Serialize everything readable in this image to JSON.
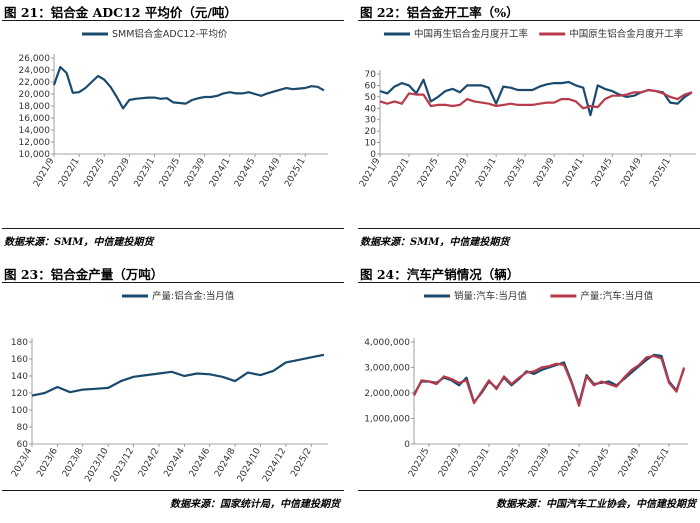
{
  "chart_data": [
    {
      "type": "line",
      "title": "图 21：铝合金 ADC12 平均价（元/吨）",
      "source": "数据来源：SMM，中信建投期货",
      "ylim": [
        10000,
        26000
      ],
      "yticks": [
        "10,000",
        "12,000",
        "14,000",
        "16,000",
        "18,000",
        "20,000",
        "22,000",
        "24,000",
        "26,000"
      ],
      "xticks": [
        "2021/9",
        "2022/1",
        "2022/5",
        "2022/9",
        "2023/1",
        "2023/5",
        "2023/9",
        "2024/1",
        "2024/5",
        "2024/9",
        "2025/1"
      ],
      "grid": false,
      "legend": "top",
      "x": [
        "2021/9",
        "2021/10",
        "2021/11",
        "2021/12",
        "2022/1",
        "2022/2",
        "2022/3",
        "2022/4",
        "2022/5",
        "2022/6",
        "2022/7",
        "2022/8",
        "2022/9",
        "2022/10",
        "2022/11",
        "2022/12",
        "2023/1",
        "2023/2",
        "2023/3",
        "2023/4",
        "2023/5",
        "2023/6",
        "2023/7",
        "2023/8",
        "2023/9",
        "2023/10",
        "2023/11",
        "2023/12",
        "2024/1",
        "2024/2",
        "2024/3",
        "2024/4",
        "2024/5",
        "2024/6",
        "2024/7",
        "2024/8",
        "2024/9",
        "2024/10",
        "2024/11",
        "2024/12",
        "2025/1",
        "2025/2",
        "2025/3",
        "2025/4"
      ],
      "series": [
        {
          "name": "SMM铝合金ADC12-平均价",
          "color": "#1a4a6e",
          "values": [
            21500,
            24500,
            23500,
            20200,
            20300,
            21000,
            22000,
            23000,
            22400,
            21200,
            19500,
            17600,
            19000,
            19200,
            19300,
            19400,
            19400,
            19200,
            19300,
            18600,
            18500,
            18400,
            19000,
            19300,
            19500,
            19500,
            19700,
            20100,
            20300,
            20100,
            20100,
            20300,
            20000,
            19700,
            20100,
            20400,
            20700,
            21000,
            20800,
            20900,
            21000,
            21300,
            21200,
            20600
          ]
        }
      ]
    },
    {
      "type": "line",
      "title": "图 22：铝合金开工率（%）",
      "source": "数据来源：SMM，中信建投期货",
      "ylim": [
        0,
        70
      ],
      "yticks": [
        "0",
        "10",
        "20",
        "30",
        "40",
        "50",
        "60",
        "70"
      ],
      "xticks": [
        "2021/9",
        "2022/1",
        "2022/5",
        "2022/9",
        "2023/1",
        "2023/5",
        "2023/9",
        "2024/1",
        "2024/5",
        "2024/9",
        "2025/1"
      ],
      "grid": false,
      "legend": "top",
      "x": [
        "2021/9",
        "2021/10",
        "2021/11",
        "2021/12",
        "2022/1",
        "2022/2",
        "2022/3",
        "2022/4",
        "2022/5",
        "2022/6",
        "2022/7",
        "2022/8",
        "2022/9",
        "2022/10",
        "2022/11",
        "2022/12",
        "2023/1",
        "2023/2",
        "2023/3",
        "2023/4",
        "2023/5",
        "2023/6",
        "2023/7",
        "2023/8",
        "2023/9",
        "2023/10",
        "2023/11",
        "2023/12",
        "2024/1",
        "2024/2",
        "2024/3",
        "2024/4",
        "2024/5",
        "2024/6",
        "2024/7",
        "2024/8",
        "2024/9",
        "2024/10",
        "2024/11",
        "2024/12",
        "2025/1",
        "2025/2",
        "2025/3",
        "2025/4"
      ],
      "series": [
        {
          "name": "中国再生铝合金月度开工率",
          "color": "#1a4a6e",
          "values": [
            55,
            53,
            59,
            62,
            60,
            53,
            65,
            46,
            50,
            55,
            57,
            54,
            60,
            60,
            60,
            58,
            44,
            59,
            58,
            56,
            56,
            56,
            59,
            61,
            62,
            62,
            63,
            60,
            58,
            34,
            60,
            57,
            55,
            52,
            50,
            51,
            54,
            56,
            55,
            54,
            45,
            44,
            50,
            54
          ]
        },
        {
          "name": "中国原生铝合金月度开工率",
          "color": "#b83a4b",
          "values": [
            46,
            44,
            46,
            44,
            53,
            52,
            52,
            42,
            43,
            43,
            42,
            43,
            48,
            46,
            45,
            44,
            42,
            43,
            44,
            43,
            43,
            43,
            44,
            45,
            45,
            48,
            48,
            46,
            40,
            42,
            41,
            48,
            51,
            51,
            52,
            54,
            54,
            56,
            55,
            53,
            50,
            48,
            52,
            54
          ]
        }
      ]
    },
    {
      "type": "line",
      "title": "图 23：铝合金产量（万吨）",
      "source": "数据来源：国家统计局，中信建投期货",
      "ylim": [
        60,
        180
      ],
      "yticks": [
        "60",
        "80",
        "100",
        "120",
        "140",
        "160",
        "180"
      ],
      "xticks": [
        "2023/4",
        "2023/6",
        "2023/8",
        "2023/10",
        "2023/12",
        "2024/2",
        "2024/4",
        "2024/6",
        "2024/8",
        "2024/10",
        "2024/12",
        "2025/2"
      ],
      "grid": false,
      "legend": "top",
      "x": [
        "2023/4",
        "2023/5",
        "2023/6",
        "2023/7",
        "2023/8",
        "2023/9",
        "2023/10",
        "2023/11",
        "2023/12",
        "2024/1",
        "2024/2",
        "2024/3",
        "2024/4",
        "2024/5",
        "2024/6",
        "2024/7",
        "2024/8",
        "2024/9",
        "2024/10",
        "2024/11",
        "2024/12",
        "2025/1",
        "2025/2",
        "2025/3"
      ],
      "series": [
        {
          "name": "产量:铝合金:当月值",
          "color": "#1a4a6e",
          "values": [
            117,
            120,
            127,
            121,
            124,
            125,
            126,
            134,
            139,
            141,
            143,
            145,
            140,
            143,
            142,
            139,
            134,
            144,
            141,
            146,
            156,
            159,
            162,
            165
          ]
        }
      ]
    },
    {
      "type": "line",
      "title": "图 24：汽车产销情况（辆）",
      "source": "数据来源：中国汽车工业协会，中信建投期货",
      "ylim": [
        0,
        4000000
      ],
      "yticks": [
        "0",
        "1,000,000",
        "2,000,000",
        "3,000,000",
        "4,000,000"
      ],
      "xticks": [
        "2022/5",
        "2022/9",
        "2023/1",
        "2023/5",
        "2023/9",
        "2024/1",
        "2024/5",
        "2024/9",
        "2025/1"
      ],
      "grid": false,
      "legend": "top",
      "x": [
        "2022/3",
        "2022/4",
        "2022/5",
        "2022/6",
        "2022/7",
        "2022/8",
        "2022/9",
        "2022/10",
        "2022/11",
        "2022/12",
        "2023/1",
        "2023/2",
        "2023/3",
        "2023/4",
        "2023/5",
        "2023/6",
        "2023/7",
        "2023/8",
        "2023/9",
        "2023/10",
        "2023/11",
        "2023/12",
        "2024/1",
        "2024/2",
        "2024/3",
        "2024/4",
        "2024/5",
        "2024/6",
        "2024/7",
        "2024/8",
        "2024/9",
        "2024/10",
        "2024/11",
        "2024/12",
        "2025/1",
        "2025/2",
        "2025/3"
      ],
      "series": [
        {
          "name": "销量:汽车:当月值",
          "color": "#1a4a6e",
          "values": [
            1950000,
            2450000,
            2450000,
            2400000,
            2600000,
            2500000,
            2300000,
            2600000,
            1640000,
            2000000,
            2450000,
            2200000,
            2600000,
            2300000,
            2550000,
            2850000,
            2750000,
            2900000,
            3000000,
            3100000,
            3200000,
            2450000,
            1580000,
            2700000,
            2350000,
            2400000,
            2450000,
            2300000,
            2550000,
            2800000,
            3050000,
            3300000,
            3500000,
            3450000,
            2450000,
            2100000,
            2950000
          ]
        },
        {
          "name": "产量:汽车:当月值",
          "color": "#b83a4b",
          "values": [
            1900000,
            2500000,
            2450000,
            2350000,
            2650000,
            2550000,
            2400000,
            2500000,
            1600000,
            2050000,
            2500000,
            2150000,
            2650000,
            2350000,
            2600000,
            2800000,
            2850000,
            3000000,
            3050000,
            3150000,
            3100000,
            2400000,
            1500000,
            2650000,
            2300000,
            2450000,
            2350000,
            2250000,
            2600000,
            2900000,
            3100000,
            3400000,
            3450000,
            3350000,
            2400000,
            2050000,
            3000000
          ]
        }
      ]
    }
  ]
}
